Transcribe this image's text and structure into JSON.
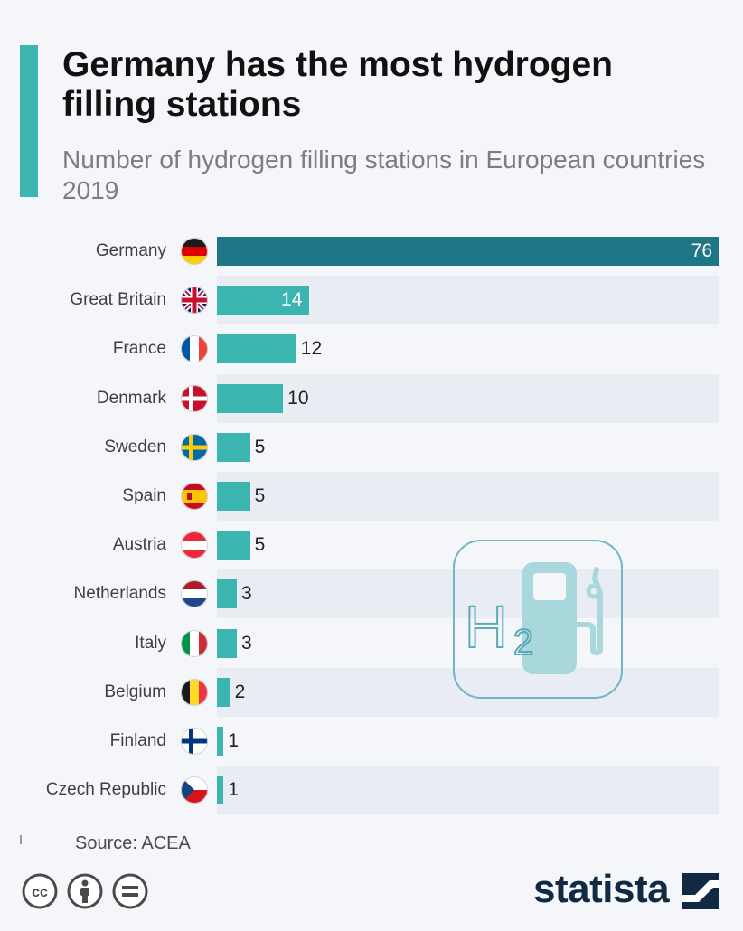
{
  "header": {
    "title": "Germany has the most hydrogen filling stations",
    "subtitle": "Number of hydrogen filling stations in European countries 2019"
  },
  "colors": {
    "accent": "#3ab5b0",
    "bar": "#3ab5b0",
    "highlight_bar": "#1f7687",
    "row_band": "#e9edf3",
    "logo": "#0f2a42"
  },
  "chart_data": {
    "type": "bar",
    "orientation": "horizontal",
    "title": "Germany has the most hydrogen filling stations",
    "subtitle": "Number of hydrogen filling stations in European countries 2019",
    "categories": [
      "Germany",
      "Great Britain",
      "France",
      "Denmark",
      "Sweden",
      "Spain",
      "Austria",
      "Netherlands",
      "Italy",
      "Belgium",
      "Finland",
      "Czech Republic"
    ],
    "values": [
      76,
      14,
      12,
      10,
      5,
      5,
      5,
      3,
      3,
      2,
      1,
      1
    ],
    "highlighted_category": "Germany",
    "xlim": [
      0,
      76
    ],
    "grid": false,
    "legend": "none",
    "flags": [
      "flag-germany-icon",
      "flag-great-britain-icon",
      "flag-france-icon",
      "flag-denmark-icon",
      "flag-sweden-icon",
      "flag-spain-icon",
      "flag-austria-icon",
      "flag-netherlands-icon",
      "flag-italy-icon",
      "flag-belgium-icon",
      "flag-finland-icon",
      "flag-czech-republic-icon"
    ]
  },
  "watermark": {
    "icon": "hydrogen-fuel-pump-icon",
    "main_glyph": "H",
    "sub_glyph": "2"
  },
  "footer": {
    "source": "Source: ACEA",
    "license_icons": [
      "creative-commons-icon",
      "attribution-icon",
      "no-derivatives-icon"
    ],
    "logo": "statista"
  }
}
